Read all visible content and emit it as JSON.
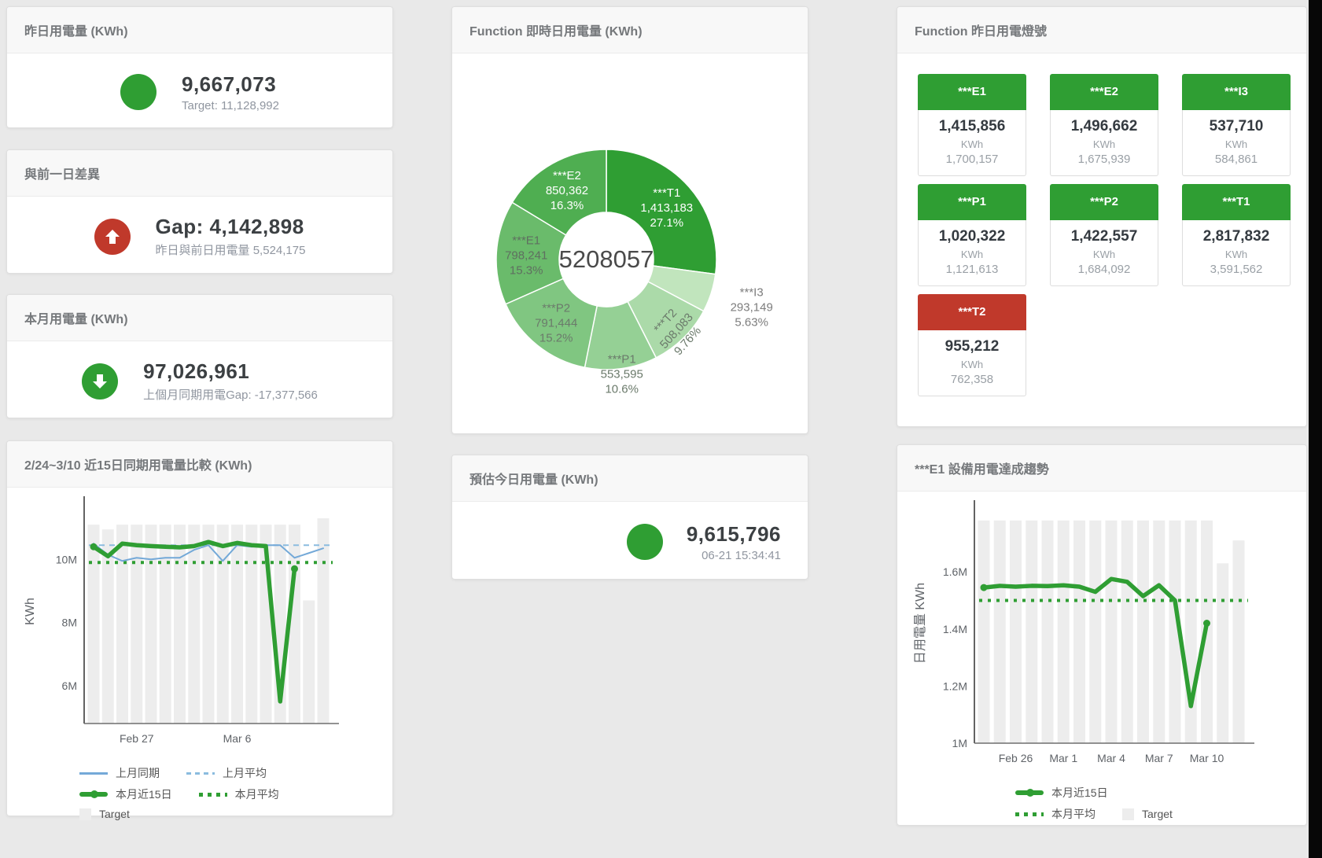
{
  "colors": {
    "green": "#2f9e33",
    "red": "#c0392b",
    "blue": "#74a9d8",
    "blue_light": "#8bbcdf",
    "bar_gray": "#ededed"
  },
  "cards": {
    "yesterday": {
      "title": "昨日用電量 (KWh)",
      "value": "9,667,073",
      "subtitle": "Target: 11,128,992",
      "status": "green",
      "arrow": "none"
    },
    "gap": {
      "title": "與前一日差異",
      "value": "Gap: 4,142,898",
      "subtitle": "昨日與前日用電量 5,524,175",
      "status": "red",
      "arrow": "up"
    },
    "month": {
      "title": "本月用電量 (KWh)",
      "value": "97,026,961",
      "subtitle": "上個月同期用電Gap: -17,377,566",
      "status": "green",
      "arrow": "down"
    },
    "forecast": {
      "title": "預估今日用電量 (KWh)",
      "value": "9,615,796",
      "subtitle": "06-21 15:34:41",
      "status": "green",
      "arrow": "none"
    },
    "donut": {
      "title": "Function 即時日用電量 (KWh)"
    },
    "lamp": {
      "title": "Function 昨日用電燈號"
    },
    "compare": {
      "title": "2/24~3/10 近15日同期用電量比較 (KWh)"
    },
    "trend": {
      "title": "***E1 設備用電達成趨勢"
    }
  },
  "lamp_tiles": [
    {
      "label": "***E1",
      "value": "1,415,856",
      "unit": "KWh",
      "target": "1,700,157",
      "status": "green"
    },
    {
      "label": "***E2",
      "value": "1,496,662",
      "unit": "KWh",
      "target": "1,675,939",
      "status": "green"
    },
    {
      "label": "***I3",
      "value": "537,710",
      "unit": "KWh",
      "target": "584,861",
      "status": "green"
    },
    {
      "label": "***P1",
      "value": "1,020,322",
      "unit": "KWh",
      "target": "1,121,613",
      "status": "green"
    },
    {
      "label": "***P2",
      "value": "1,422,557",
      "unit": "KWh",
      "target": "1,684,092",
      "status": "green"
    },
    {
      "label": "***T1",
      "value": "2,817,832",
      "unit": "KWh",
      "target": "3,591,562",
      "status": "green"
    },
    {
      "label": "***T2",
      "value": "955,212",
      "unit": "KWh",
      "target": "762,358",
      "status": "red"
    }
  ],
  "chart_data": [
    {
      "type": "pie",
      "title": "Function 即時日用電量 (KWh)",
      "center_label": "5208057",
      "hole_ratio": 0.43,
      "start_angle_deg": 0,
      "clockwise": true,
      "slices": [
        {
          "name": "***T1",
          "display": "1,413,183",
          "pct": "27.1%",
          "share": 27.1,
          "color": "#2f9e33",
          "text_color": "#ffffff"
        },
        {
          "name": "***I3",
          "display": "293,149",
          "pct": "5.63%",
          "share": 5.63,
          "color": "#c1e5bd",
          "text_color": "#7d7d7d",
          "outside": true,
          "label_r": 194
        },
        {
          "name": "***T2",
          "display": "508,083",
          "pct": "9.76%",
          "share": 9.76,
          "color": "#abdaa9",
          "text_color": "#6b7a6b",
          "rotate": -48,
          "label_r": 126
        },
        {
          "name": "***P1",
          "display": "553,595",
          "pct": "10.6%",
          "share": 10.6,
          "color": "#95d095",
          "text_color": "#6b7a6b",
          "label_r": 146
        },
        {
          "name": "***P2",
          "display": "791,444",
          "pct": "15.2%",
          "share": 15.2,
          "color": "#80c681",
          "text_color": "#6b7a6b"
        },
        {
          "name": "***E1",
          "display": "798,241",
          "pct": "15.3%",
          "share": 15.3,
          "color": "#6abb6b",
          "text_color": "#5f6f60"
        },
        {
          "name": "***E2",
          "display": "850,362",
          "pct": "16.3%",
          "share": 16.3,
          "color": "#4fae51",
          "text_color": "#ffffff"
        }
      ]
    },
    {
      "type": "line",
      "id": "compare",
      "title": "2/24~3/10 近15日同期用電量比較 (KWh)",
      "ylabel": "KWh",
      "ylim": [
        4.8,
        11.9
      ],
      "yticks": [
        {
          "v": 6,
          "label": "6M"
        },
        {
          "v": 8,
          "label": "8M"
        },
        {
          "v": 10,
          "label": "10M"
        }
      ],
      "x_count": 17,
      "xticks": [
        {
          "i": 3,
          "label": "Feb 27"
        },
        {
          "i": 10,
          "label": "Mar 6"
        }
      ],
      "grid": false,
      "target_bars": [
        11.1,
        10.95,
        11.1,
        11.1,
        11.1,
        11.1,
        11.1,
        11.1,
        11.1,
        11.1,
        11.1,
        11.1,
        11.1,
        11.1,
        11.1,
        8.7,
        11.3
      ],
      "series": [
        {
          "name": "上月平均",
          "type": "hline",
          "value": 10.45,
          "color": "#8bbcdf",
          "dash": "7 6",
          "width": 2
        },
        {
          "name": "本月平均",
          "type": "hline",
          "value": 9.9,
          "color": "#2f9e33",
          "dash": "4 7",
          "width": 4
        },
        {
          "name": "上月同期",
          "type": "line",
          "color": "#74a9d8",
          "width": 2,
          "values": [
            10.5,
            10.15,
            9.95,
            10.05,
            10.0,
            10.05,
            10.05,
            10.3,
            10.45,
            9.95,
            10.45,
            10.4,
            10.45,
            10.45,
            10.05,
            10.2,
            10.35
          ]
        },
        {
          "name": "本月近15日",
          "type": "line",
          "color": "#2f9e33",
          "width": 5.5,
          "markers": true,
          "values": [
            10.4,
            10.1,
            10.5,
            10.45,
            10.42,
            10.4,
            10.38,
            10.42,
            10.55,
            10.42,
            10.52,
            10.45,
            10.42,
            5.5,
            9.7
          ]
        }
      ],
      "legend": [
        {
          "label": "上月同期",
          "swatch": "line",
          "color": "#74a9d8"
        },
        {
          "label": "上月平均",
          "swatch": "dash",
          "color": "#8bbcdf"
        },
        {
          "label": "本月近15日",
          "swatch": "thick",
          "color": "#2f9e33"
        },
        {
          "label": "本月平均",
          "swatch": "dots",
          "color": "#2f9e33"
        },
        {
          "label": "Target",
          "swatch": "square",
          "color": "#ededed"
        }
      ]
    },
    {
      "type": "line",
      "id": "trend",
      "title": "***E1 設備用電達成趨勢",
      "ylabel": "日用電量 KWh",
      "ylim": [
        1.0,
        1.84
      ],
      "yticks": [
        {
          "v": 1,
          "label": "1M"
        },
        {
          "v": 1.2,
          "label": "1.2M"
        },
        {
          "v": 1.4,
          "label": "1.4M"
        },
        {
          "v": 1.6,
          "label": "1.6M"
        }
      ],
      "x_count": 17,
      "xticks": [
        {
          "i": 2,
          "label": "Feb 26"
        },
        {
          "i": 5,
          "label": "Mar 1"
        },
        {
          "i": 8,
          "label": "Mar 4"
        },
        {
          "i": 11,
          "label": "Mar 7"
        },
        {
          "i": 14,
          "label": "Mar 10"
        }
      ],
      "grid": false,
      "target_bars": [
        1.78,
        1.78,
        1.78,
        1.78,
        1.78,
        1.78,
        1.78,
        1.78,
        1.78,
        1.78,
        1.78,
        1.78,
        1.78,
        1.78,
        1.78,
        1.63,
        1.71
      ],
      "series": [
        {
          "name": "本月平均",
          "type": "hline",
          "value": 1.5,
          "color": "#2f9e33",
          "dash": "4 7",
          "width": 4
        },
        {
          "name": "本月近15日",
          "type": "line",
          "color": "#2f9e33",
          "width": 5.5,
          "markers": true,
          "values": [
            1.545,
            1.551,
            1.548,
            1.551,
            1.55,
            1.553,
            1.548,
            1.53,
            1.575,
            1.565,
            1.515,
            1.553,
            1.5,
            1.13,
            1.42
          ]
        }
      ],
      "legend": [
        {
          "label": "本月近15日",
          "swatch": "thick",
          "color": "#2f9e33"
        },
        {
          "label": "本月平均",
          "swatch": "dots",
          "color": "#2f9e33"
        },
        {
          "label": "Target",
          "swatch": "square",
          "color": "#ededed"
        }
      ]
    }
  ]
}
